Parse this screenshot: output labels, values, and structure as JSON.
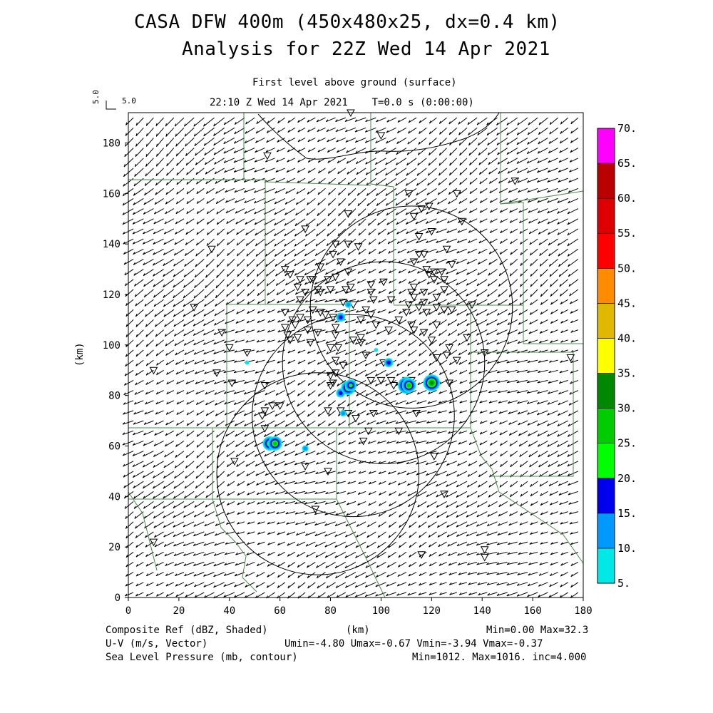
{
  "header": {
    "title_line1": "CASA DFW 400m (450x480x25, dx=0.4 km)",
    "title_line2": "Analysis for 22Z Wed 14 Apr 2021",
    "level": "First level above ground (surface)",
    "time": "22:10 Z Wed 14 Apr 2021    T=0.0 s (0:00:00)",
    "vector_scale_a": "5.0",
    "vector_scale_b": "5.0"
  },
  "footer": {
    "ref_label": "Composite Ref (dBZ, Shaded)",
    "ref_stats": "Min=0.00 Max=32.3",
    "km_label": "(km)",
    "uv_label": "U-V (m/s, Vector)",
    "uv_stats": "Umin=-4.80 Umax=-0.67 Vmin=-3.94 Vmax=-0.37",
    "slp_label": "Sea Level Pressure (mb, contour)",
    "slp_stats": "Min=1012. Max=1016. inc=4.000"
  },
  "chart_data": {
    "type": "heatmap",
    "title": "CASA DFW 400m (450x480x25, dx=0.4 km)",
    "xlabel": "(km)",
    "ylabel": "(km)",
    "xlim": [
      0,
      180
    ],
    "ylim": [
      0,
      192
    ],
    "x_ticks": [
      0,
      20,
      40,
      60,
      80,
      100,
      120,
      140,
      160,
      180
    ],
    "y_ticks": [
      0,
      20,
      40,
      60,
      80,
      100,
      120,
      140,
      160,
      180
    ],
    "colorbar": {
      "levels": [
        "5.",
        "10.",
        "15.",
        "20.",
        "25.",
        "30.",
        "35.",
        "40.",
        "45.",
        "50.",
        "55.",
        "60.",
        "65.",
        "70."
      ],
      "colors": [
        "#00e8e8",
        "#0099ff",
        "#0000ee",
        "#00ff00",
        "#00cc00",
        "#008800",
        "#ffff00",
        "#e0b800",
        "#ff8c00",
        "#ff0000",
        "#dd0000",
        "#bb0000",
        "#ff00ff"
      ]
    },
    "wind": {
      "u_mean": -3.5,
      "v_mean": -1.6,
      "grid_spacing_km": 4
    },
    "radar_rings": [
      {
        "center": [
          75,
          49
        ],
        "radius": 40
      },
      {
        "center": [
          89,
          72
        ],
        "radius": 40
      },
      {
        "center": [
          101,
          93
        ],
        "radius": 40
      },
      {
        "center": [
          112,
          115
        ],
        "radius": 40
      }
    ],
    "echoes": [
      {
        "x": 56,
        "y": 61,
        "dbz": 25
      },
      {
        "x": 58,
        "y": 61,
        "dbz": 28
      },
      {
        "x": 70,
        "y": 59,
        "dbz": 10
      },
      {
        "x": 84,
        "y": 81,
        "dbz": 15
      },
      {
        "x": 87,
        "y": 83,
        "dbz": 25
      },
      {
        "x": 88,
        "y": 84,
        "dbz": 20
      },
      {
        "x": 110,
        "y": 84,
        "dbz": 32
      },
      {
        "x": 111,
        "y": 84,
        "dbz": 28
      },
      {
        "x": 120,
        "y": 85,
        "dbz": 30
      },
      {
        "x": 103,
        "y": 93,
        "dbz": 15
      },
      {
        "x": 98,
        "y": 98,
        "dbz": 7
      },
      {
        "x": 84,
        "y": 111,
        "dbz": 15
      },
      {
        "x": 87,
        "y": 116,
        "dbz": 12
      },
      {
        "x": 85,
        "y": 73,
        "dbz": 10
      },
      {
        "x": 47,
        "y": 93,
        "dbz": 6
      }
    ],
    "stations": [
      [
        26,
        115
      ],
      [
        10,
        90
      ],
      [
        35,
        89
      ],
      [
        37,
        105
      ],
      [
        40,
        99
      ],
      [
        41,
        85
      ],
      [
        47,
        97
      ],
      [
        54,
        84
      ],
      [
        53,
        72
      ],
      [
        54,
        74
      ],
      [
        57,
        76
      ],
      [
        60,
        76
      ],
      [
        70,
        52
      ],
      [
        79,
        50
      ],
      [
        74,
        35
      ],
      [
        42,
        54
      ],
      [
        54,
        67
      ],
      [
        73,
        126
      ],
      [
        79,
        126
      ],
      [
        76,
        131
      ],
      [
        82,
        127
      ],
      [
        80,
        122
      ],
      [
        75,
        122
      ],
      [
        78,
        112
      ],
      [
        73,
        114
      ],
      [
        71,
        106
      ],
      [
        66,
        108
      ],
      [
        68,
        111
      ],
      [
        71,
        110
      ],
      [
        65,
        110
      ],
      [
        67,
        103
      ],
      [
        76,
        113
      ],
      [
        75,
        105
      ],
      [
        72,
        101
      ],
      [
        82,
        104
      ],
      [
        82,
        107
      ],
      [
        81,
        111
      ],
      [
        92,
        103
      ],
      [
        86,
        122
      ],
      [
        85,
        117
      ],
      [
        89,
        116
      ],
      [
        89,
        102
      ],
      [
        87,
        129
      ],
      [
        84,
        133
      ],
      [
        81,
        136
      ],
      [
        82,
        140
      ],
      [
        87,
        140
      ],
      [
        91,
        139
      ],
      [
        96,
        121
      ],
      [
        96,
        124
      ],
      [
        101,
        125
      ],
      [
        104,
        118
      ],
      [
        97,
        118
      ],
      [
        94,
        114
      ],
      [
        96,
        112
      ],
      [
        92,
        110
      ],
      [
        98,
        108
      ],
      [
        103,
        106
      ],
      [
        107,
        110
      ],
      [
        111,
        116
      ],
      [
        117,
        117
      ],
      [
        113,
        133
      ],
      [
        115,
        136
      ],
      [
        117,
        136
      ],
      [
        115,
        143
      ],
      [
        120,
        145
      ],
      [
        113,
        151
      ],
      [
        116,
        154
      ],
      [
        111,
        160
      ],
      [
        119,
        155
      ],
      [
        130,
        160
      ],
      [
        132,
        149
      ],
      [
        126,
        138
      ],
      [
        128,
        132
      ],
      [
        125,
        126
      ],
      [
        121,
        126
      ],
      [
        113,
        123
      ],
      [
        112,
        121
      ],
      [
        113,
        119
      ],
      [
        117,
        121
      ],
      [
        119,
        128
      ],
      [
        121,
        129
      ],
      [
        118,
        130
      ],
      [
        124,
        129
      ],
      [
        125,
        122
      ],
      [
        122,
        119
      ],
      [
        125,
        114
      ],
      [
        122,
        115
      ],
      [
        118,
        113
      ],
      [
        115,
        115
      ],
      [
        110,
        113
      ],
      [
        112,
        108
      ],
      [
        113,
        106
      ],
      [
        117,
        105
      ],
      [
        122,
        108
      ],
      [
        128,
        114
      ],
      [
        136,
        116
      ],
      [
        122,
        95
      ],
      [
        126,
        96
      ],
      [
        130,
        94
      ],
      [
        134,
        103
      ],
      [
        127,
        99
      ],
      [
        120,
        102
      ],
      [
        141,
        97
      ],
      [
        127,
        85
      ],
      [
        121,
        86
      ],
      [
        112,
        86
      ],
      [
        110,
        86
      ],
      [
        101,
        93
      ],
      [
        104,
        86
      ],
      [
        114,
        73
      ],
      [
        107,
        66
      ],
      [
        95,
        66
      ],
      [
        93,
        62
      ],
      [
        97,
        73
      ],
      [
        90,
        71
      ],
      [
        87,
        73
      ],
      [
        84,
        74
      ],
      [
        79,
        74
      ],
      [
        80,
        84
      ],
      [
        80,
        88
      ],
      [
        82,
        89
      ],
      [
        85,
        92
      ],
      [
        83,
        99
      ],
      [
        80,
        99
      ],
      [
        82,
        94
      ],
      [
        81,
        85
      ],
      [
        94,
        96
      ],
      [
        92,
        101
      ],
      [
        96,
        86
      ],
      [
        100,
        86
      ],
      [
        105,
        84
      ],
      [
        121,
        56
      ],
      [
        125,
        41
      ],
      [
        116,
        17
      ],
      [
        141,
        19
      ],
      [
        141,
        16
      ],
      [
        10,
        22
      ],
      [
        153,
        165
      ],
      [
        175,
        95
      ],
      [
        100,
        183
      ],
      [
        55,
        175
      ],
      [
        88,
        192
      ],
      [
        87,
        152
      ],
      [
        70,
        146
      ],
      [
        67,
        123
      ],
      [
        33,
        138
      ],
      [
        88,
        123
      ],
      [
        76,
        121
      ],
      [
        72,
        126
      ],
      [
        70,
        121
      ],
      [
        68,
        126
      ],
      [
        62,
        130
      ],
      [
        64,
        128
      ],
      [
        68,
        118
      ],
      [
        62,
        107
      ],
      [
        63,
        104
      ],
      [
        64,
        102
      ],
      [
        62,
        113
      ]
    ]
  }
}
